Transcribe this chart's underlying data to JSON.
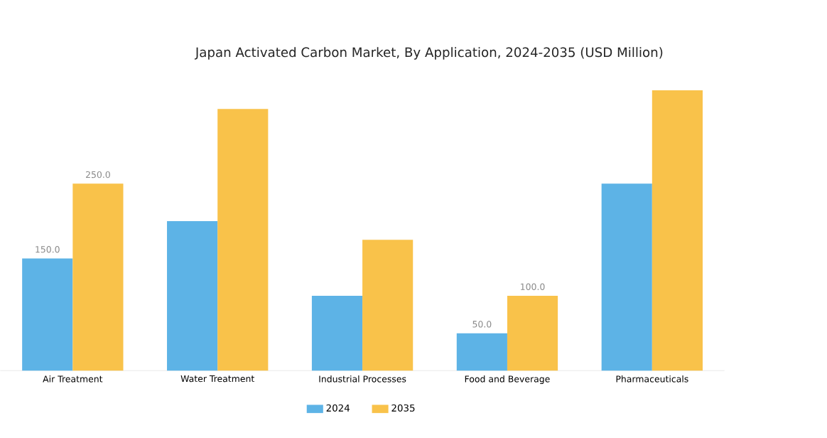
{
  "chart_data": {
    "type": "bar",
    "title": "Japan Activated Carbon Market, By Application, 2024-2035 (USD Million)",
    "categories": [
      "Air Treatment",
      "Water Treatment",
      "Industrial Processes",
      "Food and Beverage",
      "Pharmaceuticals"
    ],
    "series": [
      {
        "name": "2024",
        "color": "#5db3e6",
        "values": [
          150,
          200,
          100,
          50,
          250
        ],
        "value_labels": [
          "150.0",
          null,
          null,
          "50.0",
          null
        ]
      },
      {
        "name": "2035",
        "color": "#f9c24a",
        "values": [
          250,
          350,
          175,
          100,
          375
        ],
        "value_labels": [
          "250.0",
          null,
          null,
          "100.0",
          null
        ]
      }
    ],
    "legend": "bottom"
  }
}
